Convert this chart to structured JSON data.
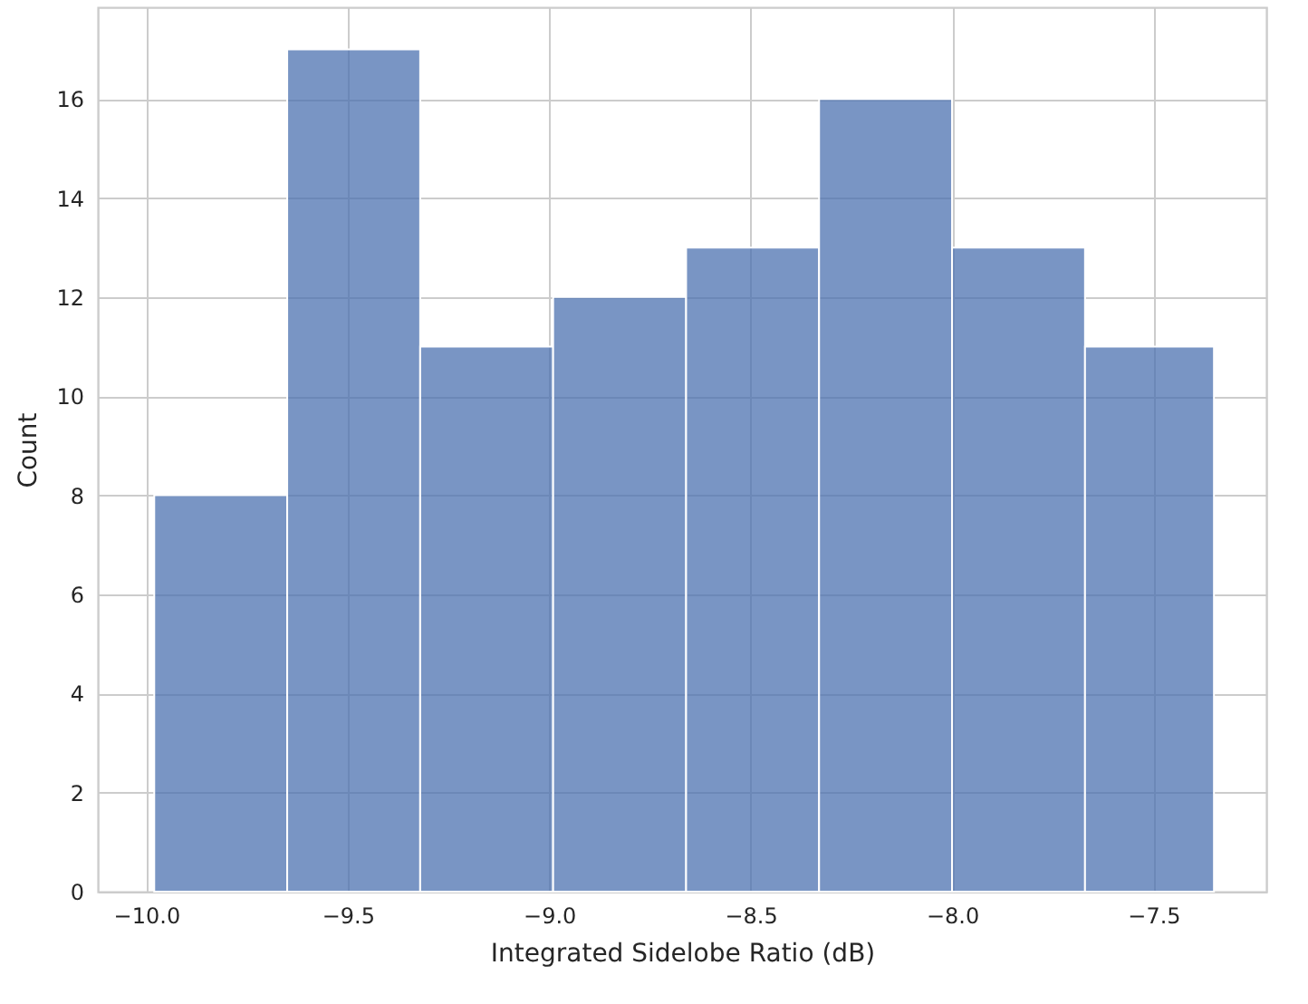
{
  "chart_data": {
    "type": "histogram",
    "xlabel": "Integrated Sidelobe Ratio (dB)",
    "ylabel": "Count",
    "bins": [
      -9.98,
      -9.65,
      -9.32,
      -8.99,
      -8.66,
      -8.33,
      -8.0,
      -7.67,
      -7.35
    ],
    "values": [
      8,
      17,
      11,
      12,
      13,
      16,
      13,
      11
    ],
    "color": "#4c72b0",
    "xlim": [
      -10.12,
      -7.22
    ],
    "xticks": [
      {
        "value": -10,
        "label": "−10.0"
      },
      {
        "value": -9.5,
        "label": "−9.5"
      },
      {
        "value": -9,
        "label": "−9.0"
      },
      {
        "value": -8.5,
        "label": "−8.5"
      },
      {
        "value": -8,
        "label": "−8.0"
      },
      {
        "value": -7.5,
        "label": "−7.5"
      }
    ],
    "ylim": [
      0,
      17.85
    ],
    "yticks": [
      0,
      2,
      4,
      6,
      8,
      10,
      12,
      14,
      16
    ],
    "grid": true
  }
}
